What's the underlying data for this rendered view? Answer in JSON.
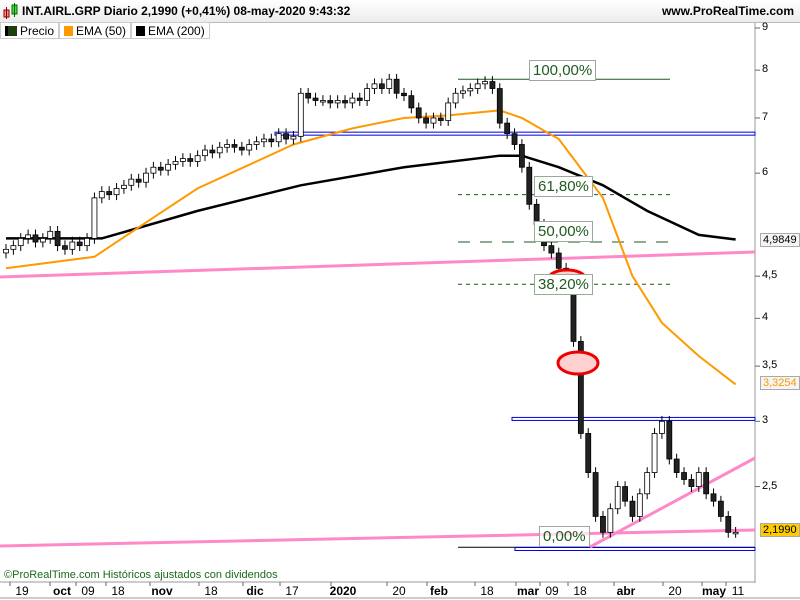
{
  "header": {
    "title": "INT.AIRL.GRP Diario 2,1990 (+0,41%) 08-may-2020 9:43:32",
    "site": "www.ProRealTime.com"
  },
  "legend": [
    {
      "label": "Precio",
      "color": "#1f3f0f"
    },
    {
      "label": "EMA (50)",
      "color": "#ff9900"
    },
    {
      "label": "EMA (200)",
      "color": "#000000"
    }
  ],
  "footer": "©ProRealTime.com Históricos ajustados con dividendos",
  "chart_data": {
    "type": "candlestick",
    "y_scale": "log",
    "ylim": [
      2.0,
      9.0
    ],
    "yticks": [
      "9",
      "8",
      "7",
      "6",
      "4,5",
      "4",
      "3,5",
      "3",
      "2,5"
    ],
    "ytick_values": [
      9,
      8,
      7,
      6,
      4.5,
      4,
      3.5,
      3,
      2.5
    ],
    "xticks": [
      {
        "label": "19",
        "bold": false
      },
      {
        "label": "oct",
        "bold": true
      },
      {
        "label": "09",
        "bold": false
      },
      {
        "label": "18",
        "bold": false
      },
      {
        "label": "nov",
        "bold": true
      },
      {
        "label": "18",
        "bold": false
      },
      {
        "label": "dic",
        "bold": true
      },
      {
        "label": "17",
        "bold": false
      },
      {
        "label": "2020",
        "bold": true
      },
      {
        "label": "20",
        "bold": false
      },
      {
        "label": "feb",
        "bold": true
      },
      {
        "label": "18",
        "bold": false
      },
      {
        "label": "mar",
        "bold": true
      },
      {
        "label": "09",
        "bold": false
      },
      {
        "label": "18",
        "bold": false
      },
      {
        "label": "abr",
        "bold": true
      },
      {
        "label": "20",
        "bold": false
      },
      {
        "label": "may",
        "bold": true
      },
      {
        "label": "11",
        "bold": false
      }
    ],
    "closes": [
      4.85,
      4.9,
      5.0,
      5.05,
      4.95,
      5.0,
      5.1,
      4.9,
      4.85,
      4.95,
      4.9,
      5.0,
      5.6,
      5.7,
      5.65,
      5.75,
      5.8,
      5.9,
      5.85,
      6.0,
      6.1,
      6.05,
      6.15,
      6.2,
      6.25,
      6.2,
      6.3,
      6.4,
      6.35,
      6.45,
      6.5,
      6.45,
      6.4,
      6.5,
      6.55,
      6.6,
      6.55,
      6.7,
      6.6,
      6.65,
      7.5,
      7.4,
      7.35,
      7.35,
      7.3,
      7.35,
      7.3,
      7.4,
      7.35,
      7.6,
      7.7,
      7.6,
      7.8,
      7.5,
      7.45,
      7.2,
      7.0,
      6.9,
      7.0,
      6.95,
      7.3,
      7.5,
      7.55,
      7.6,
      7.7,
      7.75,
      7.6,
      6.9,
      6.7,
      6.5,
      6.1,
      5.5,
      5.2,
      4.9,
      4.8,
      4.6,
      4.5,
      3.75,
      2.9,
      2.6,
      2.3,
      2.2,
      2.35,
      2.5,
      2.4,
      2.3,
      2.45,
      2.6,
      2.9,
      3.0,
      2.7,
      2.6,
      2.55,
      2.5,
      2.6,
      2.45,
      2.4,
      2.3,
      2.2,
      2.2
    ],
    "ema50": [
      [
        0,
        4.6
      ],
      [
        12,
        4.75
      ],
      [
        20,
        5.3
      ],
      [
        26,
        5.75
      ],
      [
        39,
        6.5
      ],
      [
        47,
        6.8
      ],
      [
        54,
        7.0
      ],
      [
        60,
        7.05
      ],
      [
        67,
        7.15
      ],
      [
        70,
        7.0
      ],
      [
        75,
        6.6
      ],
      [
        81,
        5.6
      ],
      [
        85,
        4.5
      ],
      [
        89,
        3.95
      ],
      [
        94,
        3.6
      ],
      [
        99,
        3.3254
      ]
    ],
    "ema200": [
      [
        0,
        5.0
      ],
      [
        13,
        5.0
      ],
      [
        26,
        5.4
      ],
      [
        40,
        5.8
      ],
      [
        54,
        6.1
      ],
      [
        67,
        6.3
      ],
      [
        70,
        6.3
      ],
      [
        75,
        6.1
      ],
      [
        81,
        5.8
      ],
      [
        87,
        5.4
      ],
      [
        94,
        5.05
      ],
      [
        99,
        4.9849
      ]
    ],
    "last_labels": {
      "ema200": "4,9849",
      "ema50": "3,3254",
      "price": "2,1990"
    },
    "fibonacci": [
      {
        "label": "100,00%",
        "value": 7.8
      },
      {
        "label": "61,80%",
        "value": 5.65
      },
      {
        "label": "50,00%",
        "value": 4.95
      },
      {
        "label": "38,20%",
        "value": 4.4
      },
      {
        "label": "0,00%",
        "value": 2.11
      }
    ],
    "horizontal_lines": [
      6.7,
      3.02,
      2.1
    ],
    "colors": {
      "up": "#ffffff",
      "down": "#222222",
      "ema50": "#ff9900",
      "ema200": "#000000",
      "trend": "#ff88c8",
      "support": "#0000dd",
      "fib": "#1f5a1f",
      "marker": "#ee0000"
    }
  }
}
